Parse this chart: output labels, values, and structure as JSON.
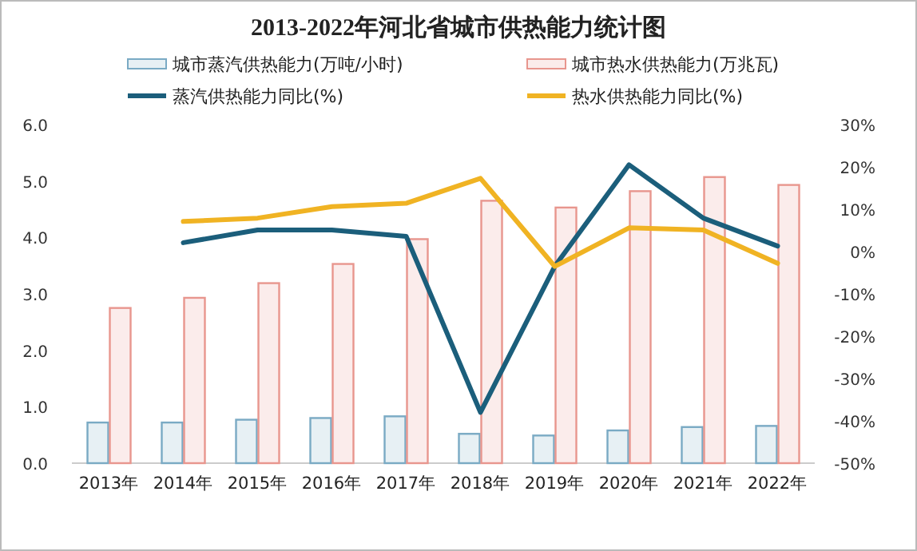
{
  "chart_data": {
    "type": "bar",
    "title": "2013-2022年河北省城市供热能力统计图",
    "categories": [
      "2013年",
      "2014年",
      "2015年",
      "2016年",
      "2017年",
      "2018年",
      "2019年",
      "2020年",
      "2021年",
      "2022年"
    ],
    "series": [
      {
        "name": "城市蒸汽供热能力(万吨/小时)",
        "color": "#7aaac4",
        "values": [
          0.72,
          0.72,
          0.77,
          0.8,
          0.83,
          0.52,
          0.49,
          0.58,
          0.64,
          0.66
        ]
      },
      {
        "name": "城市热水供热能力(万兆瓦)",
        "color": "#e8968e",
        "values": [
          2.75,
          2.93,
          3.19,
          3.53,
          3.97,
          4.65,
          4.53,
          4.82,
          5.07,
          4.93
        ]
      },
      {
        "name": "蒸汽供热能力同比(%)",
        "type": "line",
        "axis": "y2",
        "color": "#1b5e7b",
        "values": [
          null,
          2.1,
          5.1,
          5.1,
          3.6,
          -38,
          -3.5,
          20.5,
          7.9,
          1.3
        ]
      },
      {
        "name": "热水供热能力同比(%)",
        "type": "line",
        "axis": "y2",
        "color": "#f0b323",
        "values": [
          null,
          7.1,
          7.9,
          10.6,
          11.4,
          17.3,
          -3.5,
          5.6,
          5.1,
          -2.8
        ]
      }
    ],
    "ylim": [
      0,
      6
    ],
    "yticks": [
      {
        "value": 0,
        "label": "0.0"
      },
      {
        "value": 1,
        "label": "1.0"
      },
      {
        "value": 2,
        "label": "2.0"
      },
      {
        "value": 3,
        "label": "3.0"
      },
      {
        "value": 4,
        "label": "4.0"
      },
      {
        "value": 5,
        "label": "5.0"
      },
      {
        "value": 6,
        "label": "6.0"
      }
    ],
    "y2lim": [
      -50,
      30
    ],
    "y2ticks": [
      {
        "value": -50,
        "label": "-50%"
      },
      {
        "value": -40,
        "label": "-40%"
      },
      {
        "value": -30,
        "label": "-30%"
      },
      {
        "value": -20,
        "label": "-20%"
      },
      {
        "value": -10,
        "label": "-10%"
      },
      {
        "value": 0,
        "label": "0%"
      },
      {
        "value": 10,
        "label": "10%"
      },
      {
        "value": 20,
        "label": "20%"
      },
      {
        "value": 30,
        "label": "30%"
      }
    ],
    "grid": false,
    "legend": "top"
  }
}
